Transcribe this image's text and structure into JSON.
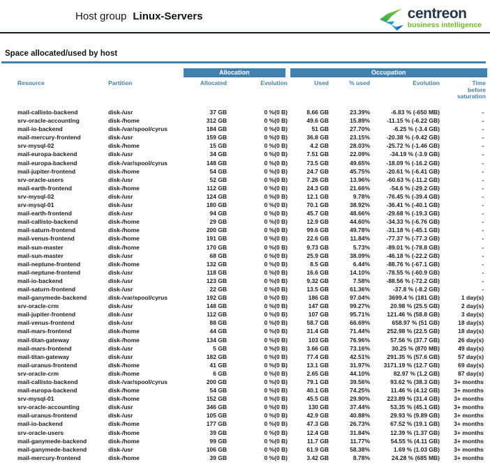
{
  "header": {
    "title_prefix": "Host group",
    "title_name": "Linux-Servers",
    "logo": {
      "brand": "centreon",
      "tagline": "business intelligence"
    }
  },
  "section": {
    "heading": "Space allocated/used by host"
  },
  "colors": {
    "accent_blue": "#4181af",
    "brand_navy": "#243746",
    "brand_green": "#72b626",
    "logo_green": "#7cc142",
    "logo_blue": "#1b75bb"
  },
  "table": {
    "group_headers": {
      "allocation": "Allocation",
      "occupation": "Occupation"
    },
    "columns": [
      "Resource",
      "Partition",
      "Allocated",
      "Evolution",
      "Used",
      "% used",
      "Evolution",
      "Time before saturation"
    ],
    "rows": [
      [
        "mail-callisto-backend",
        "disk-/usr",
        "37 GB",
        "0 %(0 B)",
        "8.66 GB",
        "23.39%",
        "-6.83 % (-650 MB)",
        "-"
      ],
      [
        "srv-oracle-accounting",
        "disk-/home",
        "312 GB",
        "0 %(0 B)",
        "49.6 GB",
        "15.89%",
        "-11.15 % (-6.22 GB)",
        "-"
      ],
      [
        "mail-io-backend",
        "disk-/var/spool/cyrus",
        "184 GB",
        "0 %(0 B)",
        "51 GB",
        "27.70%",
        "-6.25 % (-3.4 GB)",
        "-"
      ],
      [
        "mail-mercury-frontend",
        "disk-/usr",
        "159 GB",
        "0 %(0 B)",
        "36.8 GB",
        "23.15%",
        "-20.38 % (-9.42 GB)",
        "-"
      ],
      [
        "srv-mysql-02",
        "disk-/home",
        "15 GB",
        "0 %(0 B)",
        "4.2 GB",
        "28.03%",
        "-25.72 % (-1.46 GB)",
        "-"
      ],
      [
        "mail-europa-backend",
        "disk-/usr",
        "34 GB",
        "0 %(0 B)",
        "7.51 GB",
        "22.09%",
        "-34.19 % (-3.9 GB)",
        "-"
      ],
      [
        "mail-europa-backend",
        "disk-/var/spool/cyrus",
        "148 GB",
        "0 %(0 B)",
        "73.5 GB",
        "49.65%",
        "-18.09 % (-16.2 GB)",
        "-"
      ],
      [
        "mail-jupiter-frontend",
        "disk-/home",
        "54 GB",
        "0 %(0 B)",
        "24.7 GB",
        "45.75%",
        "-20.61 % (-6.41 GB)",
        "-"
      ],
      [
        "srv-oracle-users",
        "disk-/usr",
        "52 GB",
        "0 %(0 B)",
        "7.26 GB",
        "13.96%",
        "-60.63 % (-11.2 GB)",
        "-"
      ],
      [
        "mail-earth-frontend",
        "disk-/home",
        "112 GB",
        "0 %(0 B)",
        "24.3 GB",
        "21.66%",
        "-54.6 % (-29.2 GB)",
        "-"
      ],
      [
        "srv-mysql-02",
        "disk-/usr",
        "124 GB",
        "0 %(0 B)",
        "12.1 GB",
        "9.78%",
        "-76.45 % (-39.4 GB)",
        "-"
      ],
      [
        "srv-mysql-01",
        "disk-/usr",
        "180 GB",
        "0 %(0 B)",
        "70.1 GB",
        "38.92%",
        "-36.41 % (-40.1 GB)",
        "-"
      ],
      [
        "mail-earth-frontend",
        "disk-/usr",
        "94 GB",
        "0 %(0 B)",
        "45.7 GB",
        "48.66%",
        "-29.68 % (-19.3 GB)",
        "-"
      ],
      [
        "mail-callisto-backend",
        "disk-/home",
        "29 GB",
        "0 %(0 B)",
        "12.9 GB",
        "44.60%",
        "-34.33 % (-6.76 GB)",
        "-"
      ],
      [
        "mail-saturn-frontend",
        "disk-/home",
        "200 GB",
        "0 %(0 B)",
        "99.6 GB",
        "49.78%",
        "-31.18 % (-45.1 GB)",
        "-"
      ],
      [
        "mail-venus-frontend",
        "disk-/home",
        "191 GB",
        "0 %(0 B)",
        "22.6 GB",
        "11.84%",
        "-77.37 % (-77.3 GB)",
        "-"
      ],
      [
        "mail-sun-master",
        "disk-/home",
        "170 GB",
        "0 %(0 B)",
        "9.73 GB",
        "5.73%",
        "-89.01 % (-78.8 GB)",
        "-"
      ],
      [
        "mail-sun-master",
        "disk-/usr",
        "68 GB",
        "0 %(0 B)",
        "25.9 GB",
        "38.09%",
        "-46.18 % (-22.2 GB)",
        "-"
      ],
      [
        "mail-neptune-frontend",
        "disk-/home",
        "132 GB",
        "0 %(0 B)",
        "8.5 GB",
        "6.44%",
        "-88.76 % (-67.1 GB)",
        "-"
      ],
      [
        "mail-neptune-frontend",
        "disk-/usr",
        "118 GB",
        "0 %(0 B)",
        "16.6 GB",
        "14.10%",
        "-78.55 % (-60.9 GB)",
        "-"
      ],
      [
        "mail-io-backend",
        "disk-/usr",
        "123 GB",
        "0 %(0 B)",
        "9.32 GB",
        "7.58%",
        "-88.56 % (-72.2 GB)",
        "-"
      ],
      [
        "mail-saturn-frontend",
        "disk-/usr",
        "22 GB",
        "0 %(0 B)",
        "13.5 GB",
        "61.36%",
        "-37.8 % (-8.2 GB)",
        "-"
      ],
      [
        "mail-ganymede-backend",
        "disk-/var/spool/cyrus",
        "192 GB",
        "0 %(0 B)",
        "186 GB",
        "97.04%",
        "3699.4 % (181 GB)",
        "1 day(s)"
      ],
      [
        "srv-oracle-crm",
        "disk-/usr",
        "148 GB",
        "0 %(0 B)",
        "147 GB",
        "99.27%",
        "20.98 % (25.5 GB)",
        "2 day(s)"
      ],
      [
        "mail-jupiter-frontend",
        "disk-/usr",
        "112 GB",
        "0 %(0 B)",
        "107 GB",
        "95.71%",
        "121.46 % (58.8 GB)",
        "3 day(s)"
      ],
      [
        "mail-venus-frontend",
        "disk-/usr",
        "88 GB",
        "0 %(0 B)",
        "58.7 GB",
        "66.69%",
        "658.97 % (51 GB)",
        "18 day(s)"
      ],
      [
        "mail-mars-frontend",
        "disk-/home",
        "44 GB",
        "0 %(0 B)",
        "31.4 GB",
        "71.44%",
        "252.98 % (22.5 GB)",
        "18 day(s)"
      ],
      [
        "mail-titan-gateway",
        "disk-/home",
        "134 GB",
        "0 %(0 B)",
        "103 GB",
        "76.96%",
        "57.56 % (37.7 GB)",
        "26 day(s)"
      ],
      [
        "mail-mars-frontend",
        "disk-/usr",
        "5 GB",
        "0 %(0 B)",
        "3.66 GB",
        "73.16%",
        "30.25 % (870 MB)",
        "49 day(s)"
      ],
      [
        "mail-titan-gateway",
        "disk-/usr",
        "182 GB",
        "0 %(0 B)",
        "77.4 GB",
        "42.51%",
        "291.35 % (57.6 GB)",
        "57 day(s)"
      ],
      [
        "mail-uranus-frontend",
        "disk-/home",
        "41 GB",
        "0 %(0 B)",
        "13.1 GB",
        "31.97%",
        "3171.19 % (12.7 GB)",
        "69 day(s)"
      ],
      [
        "srv-oracle-crm",
        "disk-/home",
        "6 GB",
        "0 %(0 B)",
        "2.65 GB",
        "44.10%",
        "82.97 % (1.2 GB)",
        "87 day(s)"
      ],
      [
        "mail-callisto-backend",
        "disk-/var/spool/cyrus",
        "200 GB",
        "0 %(0 B)",
        "79.1 GB",
        "39.56%",
        "93.62 % (38.3 GB)",
        "3+ months"
      ],
      [
        "mail-europa-backend",
        "disk-/home",
        "54 GB",
        "0 %(0 B)",
        "40.1 GB",
        "74.25%",
        "11.46 % (4.12 GB)",
        "3+ months"
      ],
      [
        "srv-mysql-01",
        "disk-/home",
        "152 GB",
        "0 %(0 B)",
        "45.5 GB",
        "29.90%",
        "223.89 % (31.4 GB)",
        "3+ months"
      ],
      [
        "srv-oracle-accounting",
        "disk-/usr",
        "346 GB",
        "0 %(0 B)",
        "130 GB",
        "37.44%",
        "53.35 % (45.1 GB)",
        "3+ months"
      ],
      [
        "mail-uranus-frontend",
        "disk-/usr",
        "105 GB",
        "0 %(0 B)",
        "42.9 GB",
        "40.88%",
        "29.93 % (9.89 GB)",
        "3+ months"
      ],
      [
        "mail-io-backend",
        "disk-/home",
        "177 GB",
        "0 %(0 B)",
        "47.3 GB",
        "26.73%",
        "67.52 % (19.1 GB)",
        "3+ months"
      ],
      [
        "srv-oracle-users",
        "disk-/home",
        "39 GB",
        "0 %(0 B)",
        "12.4 GB",
        "31.84%",
        "12.39 % (1.37 GB)",
        "3+ months"
      ],
      [
        "mail-ganymede-backend",
        "disk-/home",
        "99 GB",
        "0 %(0 B)",
        "11.7 GB",
        "11.77%",
        "54.55 % (4.11 GB)",
        "3+ months"
      ],
      [
        "mail-ganymede-backend",
        "disk-/usr",
        "106 GB",
        "0 %(0 B)",
        "61.9 GB",
        "58.38%",
        "1.69 % (1.03 GB)",
        "3+ months"
      ],
      [
        "mail-mercury-frontend",
        "disk-/home",
        "39 GB",
        "0 %(0 B)",
        "3.42 GB",
        "8.78%",
        "24.28 % (685 MB)",
        "3+ months"
      ]
    ]
  }
}
